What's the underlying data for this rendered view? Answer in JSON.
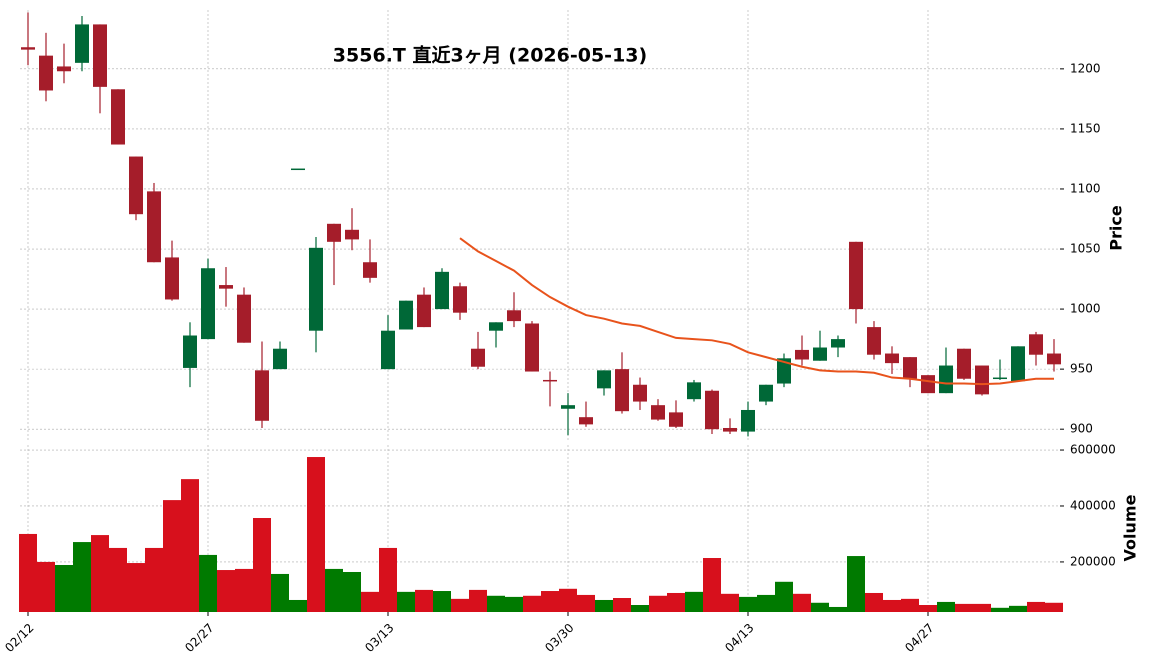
{
  "chart_data": {
    "type": "candlestick",
    "title": "3556.T  直近3ヶ月  (2026-05-13)",
    "ylabel": "Price",
    "volume_label": "Volume",
    "categories": [
      "02/12",
      null,
      null,
      null,
      null,
      null,
      null,
      null,
      null,
      null,
      "02/27",
      null,
      null,
      null,
      null,
      null,
      null,
      null,
      null,
      null,
      "03/13",
      null,
      null,
      null,
      null,
      null,
      null,
      null,
      null,
      null,
      "03/30",
      null,
      null,
      null,
      null,
      null,
      null,
      null,
      null,
      null,
      "04/13",
      null,
      null,
      null,
      null,
      null,
      null,
      null,
      null,
      null,
      "04/27",
      null,
      null,
      null,
      null,
      null,
      null,
      null
    ],
    "open": [
      1218,
      1211,
      1202,
      1205,
      1237,
      1183,
      1127,
      1098,
      1043,
      951,
      975,
      1020,
      1012,
      949,
      950,
      1117,
      982,
      1071,
      1066,
      1039,
      950,
      983,
      1012,
      1000,
      1019,
      967,
      982,
      999,
      988,
      941,
      917,
      910,
      934,
      950,
      937,
      920,
      914,
      925,
      932,
      901,
      898,
      923,
      938,
      966,
      957,
      968,
      1056,
      985,
      963,
      960,
      945,
      930,
      967,
      953,
      942,
      940,
      979,
      963
    ],
    "high": [
      1247,
      1230,
      1221,
      1244,
      1237,
      1183,
      1127,
      1105,
      1057,
      989,
      1042,
      1035,
      1018,
      973,
      973,
      1117,
      1060,
      1071,
      1084,
      1058,
      995,
      1007,
      1018,
      1034,
      1022,
      981,
      989,
      1014,
      990,
      948,
      930,
      923,
      949,
      964,
      943,
      925,
      924,
      941,
      933,
      909,
      923,
      937,
      963,
      978,
      982,
      978,
      1056,
      990,
      969,
      960,
      945,
      968,
      967,
      953,
      958,
      969,
      981,
      975
    ],
    "low": [
      1203,
      1173,
      1188,
      1198,
      1163,
      1137,
      1074,
      1039,
      1007,
      935,
      975,
      1002,
      972,
      901,
      950,
      1117,
      964,
      1020,
      1049,
      1022,
      950,
      983,
      985,
      1000,
      991,
      950,
      968,
      985,
      948,
      919,
      895,
      902,
      928,
      913,
      916,
      907,
      901,
      923,
      896,
      896,
      894,
      920,
      935,
      953,
      957,
      960,
      988,
      958,
      946,
      935,
      930,
      930,
      941,
      928,
      941,
      940,
      953,
      948
    ],
    "close": [
      1216,
      1182,
      1198,
      1237,
      1185,
      1137,
      1079,
      1039,
      1008,
      978,
      1034,
      1017,
      972,
      907,
      967,
      1117,
      1051,
      1056,
      1058,
      1026,
      982,
      1007,
      985,
      1031,
      997,
      952,
      989,
      990,
      948,
      940,
      920,
      904,
      949,
      915,
      923,
      908,
      902,
      939,
      900,
      898,
      916,
      937,
      959,
      958,
      968,
      975,
      1000,
      962,
      955,
      942,
      930,
      953,
      942,
      929,
      943,
      969,
      962,
      954
    ],
    "volume": [
      300000,
      200000,
      189000,
      271000,
      296000,
      250000,
      196000,
      250000,
      421000,
      496000,
      225000,
      171000,
      175000,
      357000,
      157000,
      64000,
      575000,
      175000,
      164000,
      93000,
      250000,
      93000,
      100000,
      96000,
      68000,
      100000,
      79000,
      75000,
      79000,
      96000,
      104000,
      82000,
      64000,
      71000,
      46000,
      79000,
      89000,
      93000,
      214000,
      86000,
      75000,
      82000,
      129000,
      86000,
      54000,
      39000,
      221000,
      89000,
      64000,
      68000,
      46000,
      57000,
      50000,
      50000,
      36000,
      43000,
      57000,
      54000
    ],
    "ma": [
      null,
      null,
      null,
      null,
      null,
      null,
      null,
      null,
      null,
      null,
      null,
      null,
      null,
      null,
      null,
      null,
      null,
      null,
      null,
      null,
      null,
      null,
      null,
      null,
      1059,
      1048,
      1040,
      1032,
      1020,
      1010,
      1002,
      995,
      992,
      988,
      986,
      981,
      976,
      975,
      974,
      971,
      964,
      960,
      956,
      952,
      949,
      948,
      948,
      947,
      943,
      942,
      940,
      938,
      938,
      937.5,
      938,
      940,
      942,
      942
    ],
    "up_color": "#006837",
    "down_color": "#a51d2a",
    "volume_up_color": "#007a00",
    "volume_down_color": "#d7101c",
    "ma_color": "#e8531c",
    "ylim": [
      891,
      1249
    ],
    "yticks": [
      900,
      950,
      1000,
      1050,
      1100,
      1150,
      1200
    ],
    "volume_ylim": [
      21000,
      618000
    ],
    "volume_yticks": [
      200000,
      400000,
      600000
    ],
    "grid": true
  }
}
